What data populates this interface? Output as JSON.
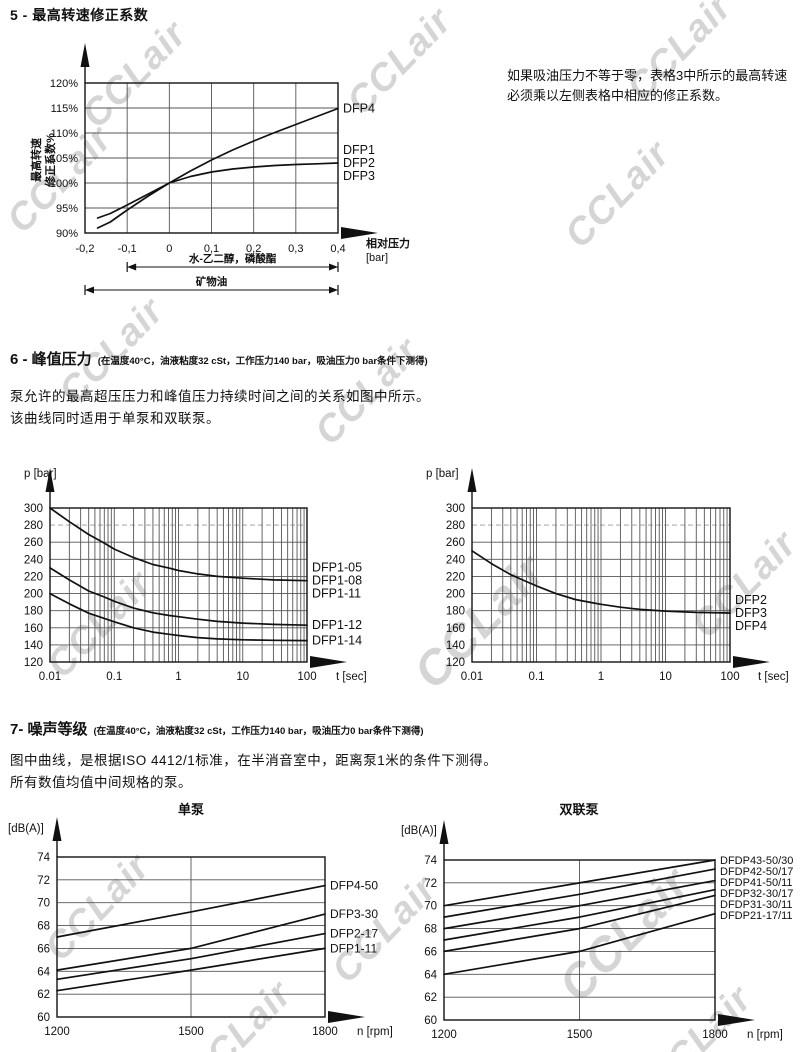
{
  "page": {
    "watermark_text": "CCLair"
  },
  "sections": {
    "s5": {
      "title": "5 - 最高转速修正系数",
      "note_line1": "如果吸油压力不等于零，表格3中所示的最高转速",
      "note_line2": "必须乘以左侧表格中相应的修正系数。"
    },
    "s6": {
      "title_prefix": "6 - 峰值压力",
      "subtitle": "(在温度40°C，油液粘度32 cSt，工作压力140 bar，吸油压力0 bar条件下测得)",
      "body_line1": "泵允许的最高超压压力和峰值压力持续时间之间的关系如图中所示。",
      "body_line2": "该曲线同时适用于单泵和双联泵。"
    },
    "s7": {
      "title_prefix": "7- 噪声等级",
      "subtitle": "(在温度40°C，油液粘度32 cSt，工作压力140 bar，吸油压力0 bar条件下测得)",
      "body_line1": "图中曲线，是根据ISO 4412/1标准，在半消音室中，距离泵1米的条件下测得。",
      "body_line2": "所有数值均值中间规格的泵。"
    }
  },
  "chart_data": [
    {
      "id": "max-speed-correction",
      "type": "line",
      "title": "",
      "x_scale": "linear",
      "xlim": [
        -0.2,
        0.4
      ],
      "ylim": [
        90,
        120
      ],
      "xticks": [
        -0.2,
        -0.1,
        0,
        0.1,
        0.2,
        0.3,
        0.4
      ],
      "xtick_labels": [
        "-0,2",
        "-0,1",
        "0",
        "0,1",
        "0,2",
        "0,3",
        "0,4"
      ],
      "yticks": [
        90,
        95,
        100,
        105,
        110,
        115,
        120
      ],
      "ytick_suffix": "%",
      "xlabel_lines": [
        "相对压力",
        "[bar]"
      ],
      "ylabel_lines": [
        "最高转速",
        "修正系数%"
      ],
      "series": [
        {
          "name": "DFP4",
          "labels": [
            "DFP4"
          ],
          "x": [
            -0.17,
            -0.14,
            -0.1,
            -0.05,
            0,
            0.05,
            0.1,
            0.15,
            0.2,
            0.25,
            0.3,
            0.35,
            0.4
          ],
          "y": [
            91,
            92.2,
            94.6,
            97.4,
            100,
            102.4,
            104.6,
            106.6,
            108.4,
            110.1,
            111.7,
            113.3,
            114.9
          ]
        },
        {
          "name": "DFP1/DFP2/DFP3",
          "labels": [
            "DFP1",
            "DFP2",
            "DFP3"
          ],
          "x": [
            -0.17,
            -0.14,
            -0.1,
            -0.05,
            0,
            0.05,
            0.1,
            0.15,
            0.2,
            0.25,
            0.3,
            0.35,
            0.4
          ],
          "y": [
            93,
            93.9,
            95.6,
            97.8,
            100,
            101.3,
            102.2,
            102.8,
            103.2,
            103.5,
            103.7,
            103.85,
            104
          ]
        }
      ],
      "dim_lines": [
        {
          "label": "水-乙二醇，磷酸酯",
          "from": -0.1,
          "to": 0.4
        },
        {
          "label": "矿物油",
          "from": -0.2,
          "to": 0.4
        }
      ]
    },
    {
      "id": "peak-pressure-dfp1",
      "type": "line",
      "x_scale": "log",
      "log_minor": true,
      "xlim": [
        0.01,
        100
      ],
      "ylim": [
        120,
        300
      ],
      "xticks": [
        0.01,
        0.1,
        1,
        10,
        100
      ],
      "xtick_labels": [
        "0.01",
        "0.1",
        "1",
        "10",
        "100"
      ],
      "yticks": [
        120,
        140,
        160,
        180,
        200,
        220,
        240,
        260,
        280,
        300
      ],
      "dashed_ytick": 280,
      "xlabel_lines": [
        "t [sec]"
      ],
      "ylabel": "p [bar]",
      "series": [
        {
          "name": "DFP1-05/08/11",
          "labels": [
            "DFP1-05",
            "DFP1-08",
            "DFP1-11"
          ],
          "x": [
            0.01,
            0.02,
            0.04,
            0.07,
            0.1,
            0.2,
            0.4,
            0.7,
            1,
            2,
            4,
            10,
            30,
            100
          ],
          "y": [
            300,
            284,
            269,
            259,
            252,
            242,
            234,
            230,
            227,
            223,
            220,
            218,
            216,
            215
          ]
        },
        {
          "name": "DFP1-12",
          "labels": [
            "DFP1-12"
          ],
          "x": [
            0.01,
            0.02,
            0.04,
            0.07,
            0.1,
            0.2,
            0.4,
            0.7,
            1,
            2,
            4,
            10,
            30,
            100
          ],
          "y": [
            230,
            216,
            203,
            196,
            191,
            183,
            177.5,
            174.5,
            173,
            170,
            167.5,
            165.5,
            164,
            163
          ]
        },
        {
          "name": "DFP1-14",
          "labels": [
            "DFP1-14"
          ],
          "x": [
            0.01,
            0.02,
            0.04,
            0.07,
            0.1,
            0.2,
            0.4,
            0.7,
            1,
            2,
            4,
            10,
            30,
            100
          ],
          "y": [
            200,
            188,
            177,
            171,
            167,
            160,
            155,
            152.5,
            151,
            148.5,
            147,
            146,
            145.4,
            145
          ]
        }
      ]
    },
    {
      "id": "peak-pressure-dfp2-dfp3-dfp4",
      "type": "line",
      "x_scale": "log",
      "log_minor": true,
      "xlim": [
        0.01,
        100
      ],
      "ylim": [
        120,
        300
      ],
      "xticks": [
        0.01,
        0.1,
        1,
        10,
        100
      ],
      "xtick_labels": [
        "0.01",
        "0.1",
        "1",
        "10",
        "100"
      ],
      "yticks": [
        120,
        140,
        160,
        180,
        200,
        220,
        240,
        260,
        280,
        300
      ],
      "dashed_ytick": 280,
      "xlabel_lines": [
        "t [sec]"
      ],
      "ylabel": "p [bar]",
      "series": [
        {
          "name": "DFP2/DFP3/DFP4",
          "labels": [
            "DFP2",
            "DFP3",
            "DFP4"
          ],
          "x": [
            0.01,
            0.02,
            0.04,
            0.07,
            0.1,
            0.2,
            0.4,
            0.7,
            1,
            2,
            4,
            10,
            30,
            100
          ],
          "y": [
            250,
            235,
            222,
            214,
            209,
            200,
            193,
            189.5,
            187.5,
            184,
            181.5,
            179.5,
            178,
            177.3
          ]
        }
      ]
    },
    {
      "id": "noise-single-pump",
      "type": "line",
      "title": "单泵",
      "x_scale": "linear",
      "xlim": [
        1200,
        1800
      ],
      "ylim": [
        60,
        74
      ],
      "xticks": [
        1200,
        1500,
        1800
      ],
      "xtick_labels": [
        "1200",
        "1500",
        "1800"
      ],
      "xgrid": [
        1500
      ],
      "yticks": [
        60,
        62,
        64,
        66,
        68,
        70,
        72,
        74
      ],
      "xlabel_lines": [
        "n [rpm]"
      ],
      "ylabel": "[dB(A)]",
      "series": [
        {
          "name": "DFP4-50",
          "labels": [
            "DFP4-50"
          ],
          "x": [
            1200,
            1500,
            1800
          ],
          "y": [
            67,
            69.2,
            71.5
          ]
        },
        {
          "name": "DFP3-30",
          "labels": [
            "DFP3-30"
          ],
          "x": [
            1200,
            1500,
            1800
          ],
          "y": [
            64.1,
            66,
            69
          ]
        },
        {
          "name": "DFP2-17",
          "labels": [
            "DFP2-17"
          ],
          "x": [
            1200,
            1500,
            1800
          ],
          "y": [
            63.3,
            65.1,
            67.3
          ]
        },
        {
          "name": "DFP1-11",
          "labels": [
            "DFP1-11"
          ],
          "x": [
            1200,
            1500,
            1800
          ],
          "y": [
            62.3,
            64.1,
            66
          ]
        }
      ]
    },
    {
      "id": "noise-tandem-pump",
      "type": "line",
      "title": "双联泵",
      "x_scale": "linear",
      "xlim": [
        1200,
        1800
      ],
      "ylim": [
        60,
        74
      ],
      "xticks": [
        1200,
        1500,
        1800
      ],
      "xtick_labels": [
        "1200",
        "1500",
        "1800"
      ],
      "xgrid": [
        1500
      ],
      "yticks": [
        60,
        62,
        64,
        66,
        68,
        70,
        72,
        74
      ],
      "xlabel_lines": [
        "n [rpm]"
      ],
      "ylabel": "[dB(A)]",
      "series": [
        {
          "name": "DFDP43-50/30",
          "labels": [
            "DFDP43-50/30"
          ],
          "x": [
            1200,
            1500,
            1800
          ],
          "y": [
            70,
            72,
            74
          ]
        },
        {
          "name": "DFDP42-50/17",
          "labels": [
            "DFDP42-50/17"
          ],
          "x": [
            1200,
            1500,
            1800
          ],
          "y": [
            69,
            71,
            73.2
          ]
        },
        {
          "name": "DFDP41-50/11",
          "labels": [
            "DFDP41-50/11"
          ],
          "x": [
            1200,
            1500,
            1800
          ],
          "y": [
            68,
            70,
            72.2
          ]
        },
        {
          "name": "DFDP32-30/17",
          "labels": [
            "DFDP32-30/17"
          ],
          "x": [
            1200,
            1500,
            1800
          ],
          "y": [
            67,
            69,
            71.4
          ]
        },
        {
          "name": "DFDP31-30/11",
          "labels": [
            "DFDP31-30/11"
          ],
          "x": [
            1200,
            1500,
            1800
          ],
          "y": [
            66,
            68,
            70.9
          ]
        },
        {
          "name": "DFDP21-17/11",
          "labels": [
            "DFDP21-17/11"
          ],
          "x": [
            1200,
            1500,
            1800
          ],
          "y": [
            64,
            66,
            69.3
          ]
        }
      ]
    }
  ]
}
